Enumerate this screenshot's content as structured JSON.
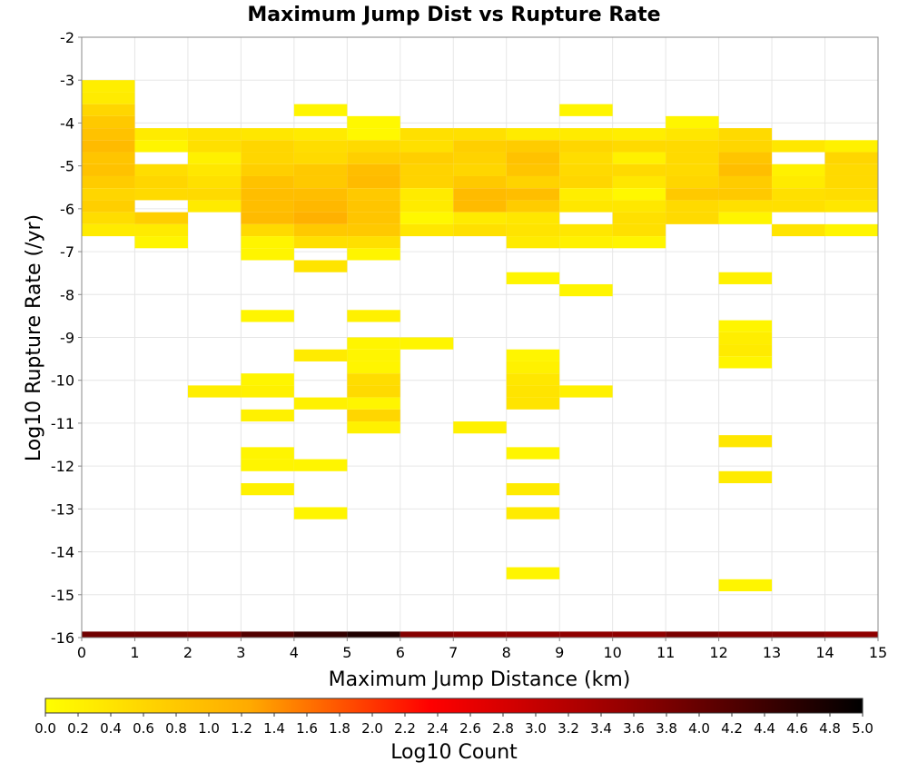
{
  "chart_data": {
    "type": "heatmap",
    "title": "Maximum Jump Dist vs Rupture Rate",
    "xlabel": "Maximum Jump Distance (km)",
    "ylabel": "Log10 Rupture Rate (/yr)",
    "xlim": [
      0,
      15
    ],
    "ylim": [
      -16,
      -2
    ],
    "x_ticks": [
      "0",
      "1",
      "2",
      "3",
      "4",
      "5",
      "6",
      "7",
      "8",
      "9",
      "10",
      "11",
      "12",
      "13",
      "14",
      "15"
    ],
    "y_ticks": [
      "-2",
      "-3",
      "-4",
      "-5",
      "-6",
      "-7",
      "-8",
      "-9",
      "-10",
      "-11",
      "-12",
      "-13",
      "-14",
      "-15",
      "-16"
    ],
    "grid": true,
    "x_bin_width": 1,
    "y_bin_height": 0.28,
    "colorbar": {
      "label": "Log10 Count",
      "range": [
        0,
        5
      ],
      "ticks": [
        "0.0",
        "0.2",
        "0.4",
        "0.6",
        "0.8",
        "1.0",
        "1.2",
        "1.4",
        "1.6",
        "1.8",
        "2.0",
        "2.2",
        "2.4",
        "2.6",
        "2.8",
        "3.0",
        "3.2",
        "3.4",
        "3.6",
        "3.8",
        "4.0",
        "4.2",
        "4.4",
        "4.6",
        "4.8",
        "5.0"
      ],
      "colors": [
        "#ffff00",
        "#ffaa00",
        "#ff0000",
        "#990000",
        "#000000"
      ]
    },
    "bottom_row": {
      "y": -16,
      "values": [
        3.9,
        3.9,
        3.8,
        4.2,
        4.5,
        4.7,
        3.7,
        3.6,
        3.6,
        3.6,
        3.6,
        3.8,
        3.7,
        3.7,
        3.6
      ]
    },
    "cells": [
      {
        "x": 0,
        "y": -3.14,
        "v": 0.25
      },
      {
        "x": 0,
        "y": -3.42,
        "v": 0.3
      },
      {
        "x": 0,
        "y": -3.7,
        "v": 0.6
      },
      {
        "x": 0,
        "y": -3.98,
        "v": 0.8
      },
      {
        "x": 0,
        "y": -4.26,
        "v": 0.9
      },
      {
        "x": 0,
        "y": -4.54,
        "v": 1.0
      },
      {
        "x": 0,
        "y": -4.82,
        "v": 0.85
      },
      {
        "x": 0,
        "y": -5.1,
        "v": 0.9
      },
      {
        "x": 0,
        "y": -5.38,
        "v": 0.75
      },
      {
        "x": 0,
        "y": -5.66,
        "v": 0.6
      },
      {
        "x": 0,
        "y": -5.94,
        "v": 0.7
      },
      {
        "x": 0,
        "y": -6.22,
        "v": 0.5
      },
      {
        "x": 0,
        "y": -6.5,
        "v": 0.3
      },
      {
        "x": 1,
        "y": -4.26,
        "v": 0.3
      },
      {
        "x": 1,
        "y": -4.54,
        "v": 0.15
      },
      {
        "x": 1,
        "y": -5.1,
        "v": 0.5
      },
      {
        "x": 1,
        "y": -5.38,
        "v": 0.6
      },
      {
        "x": 1,
        "y": -5.66,
        "v": 0.55
      },
      {
        "x": 1,
        "y": -6.22,
        "v": 0.7
      },
      {
        "x": 1,
        "y": -6.5,
        "v": 0.3
      },
      {
        "x": 1,
        "y": -6.78,
        "v": 0.15
      },
      {
        "x": 2,
        "y": -4.26,
        "v": 0.4
      },
      {
        "x": 2,
        "y": -4.54,
        "v": 0.45
      },
      {
        "x": 2,
        "y": -4.82,
        "v": 0.2
      },
      {
        "x": 2,
        "y": -5.1,
        "v": 0.35
      },
      {
        "x": 2,
        "y": -5.38,
        "v": 0.45
      },
      {
        "x": 2,
        "y": -5.66,
        "v": 0.55
      },
      {
        "x": 2,
        "y": -5.94,
        "v": 0.3
      },
      {
        "x": 2,
        "y": -10.26,
        "v": 0.25
      },
      {
        "x": 3,
        "y": -4.26,
        "v": 0.35
      },
      {
        "x": 3,
        "y": -4.54,
        "v": 0.6
      },
      {
        "x": 3,
        "y": -4.82,
        "v": 0.6
      },
      {
        "x": 3,
        "y": -5.1,
        "v": 0.7
      },
      {
        "x": 3,
        "y": -5.38,
        "v": 0.9
      },
      {
        "x": 3,
        "y": -5.66,
        "v": 0.95
      },
      {
        "x": 3,
        "y": -5.94,
        "v": 0.95
      },
      {
        "x": 3,
        "y": -6.22,
        "v": 1.0
      },
      {
        "x": 3,
        "y": -6.5,
        "v": 0.55
      },
      {
        "x": 3,
        "y": -6.78,
        "v": 0.15
      },
      {
        "x": 3,
        "y": -7.06,
        "v": 0.15
      },
      {
        "x": 3,
        "y": -8.5,
        "v": 0.15
      },
      {
        "x": 3,
        "y": -9.98,
        "v": 0.15
      },
      {
        "x": 3,
        "y": -10.26,
        "v": 0.2
      },
      {
        "x": 3,
        "y": -10.82,
        "v": 0.2
      },
      {
        "x": 3,
        "y": -11.7,
        "v": 0.15
      },
      {
        "x": 3,
        "y": -11.98,
        "v": 0.15
      },
      {
        "x": 3,
        "y": -12.54,
        "v": 0.2
      },
      {
        "x": 4,
        "y": -3.7,
        "v": 0.15
      },
      {
        "x": 4,
        "y": -4.26,
        "v": 0.3
      },
      {
        "x": 4,
        "y": -4.54,
        "v": 0.5
      },
      {
        "x": 4,
        "y": -4.82,
        "v": 0.55
      },
      {
        "x": 4,
        "y": -5.1,
        "v": 0.8
      },
      {
        "x": 4,
        "y": -5.38,
        "v": 0.8
      },
      {
        "x": 4,
        "y": -5.66,
        "v": 0.95
      },
      {
        "x": 4,
        "y": -5.94,
        "v": 1.05
      },
      {
        "x": 4,
        "y": -6.22,
        "v": 1.15
      },
      {
        "x": 4,
        "y": -6.5,
        "v": 0.8
      },
      {
        "x": 4,
        "y": -6.78,
        "v": 0.45
      },
      {
        "x": 4,
        "y": -7.34,
        "v": 0.4
      },
      {
        "x": 4,
        "y": -9.42,
        "v": 0.3
      },
      {
        "x": 4,
        "y": -10.54,
        "v": 0.2
      },
      {
        "x": 4,
        "y": -11.98,
        "v": 0.15
      },
      {
        "x": 4,
        "y": -13.1,
        "v": 0.15
      },
      {
        "x": 5,
        "y": -3.98,
        "v": 0.1
      },
      {
        "x": 5,
        "y": -4.26,
        "v": 0.1
      },
      {
        "x": 5,
        "y": -4.54,
        "v": 0.55
      },
      {
        "x": 5,
        "y": -4.82,
        "v": 0.7
      },
      {
        "x": 5,
        "y": -5.1,
        "v": 0.95
      },
      {
        "x": 5,
        "y": -5.38,
        "v": 1.0
      },
      {
        "x": 5,
        "y": -5.66,
        "v": 0.8
      },
      {
        "x": 5,
        "y": -5.94,
        "v": 0.85
      },
      {
        "x": 5,
        "y": -6.22,
        "v": 0.85
      },
      {
        "x": 5,
        "y": -6.5,
        "v": 0.8
      },
      {
        "x": 5,
        "y": -6.78,
        "v": 0.45
      },
      {
        "x": 5,
        "y": -7.06,
        "v": 0.15
      },
      {
        "x": 5,
        "y": -8.5,
        "v": 0.2
      },
      {
        "x": 5,
        "y": -9.14,
        "v": 0.15
      },
      {
        "x": 5,
        "y": -9.42,
        "v": 0.15
      },
      {
        "x": 5,
        "y": -9.7,
        "v": 0.15
      },
      {
        "x": 5,
        "y": -9.98,
        "v": 0.5
      },
      {
        "x": 5,
        "y": -10.26,
        "v": 0.55
      },
      {
        "x": 5,
        "y": -10.54,
        "v": 0.15
      },
      {
        "x": 5,
        "y": -10.82,
        "v": 0.6
      },
      {
        "x": 5,
        "y": -11.1,
        "v": 0.2
      },
      {
        "x": 6,
        "y": -4.26,
        "v": 0.45
      },
      {
        "x": 6,
        "y": -4.54,
        "v": 0.45
      },
      {
        "x": 6,
        "y": -4.82,
        "v": 0.7
      },
      {
        "x": 6,
        "y": -5.1,
        "v": 0.65
      },
      {
        "x": 6,
        "y": -5.38,
        "v": 0.65
      },
      {
        "x": 6,
        "y": -5.66,
        "v": 0.3
      },
      {
        "x": 6,
        "y": -5.94,
        "v": 0.3
      },
      {
        "x": 6,
        "y": -6.22,
        "v": 0.1
      },
      {
        "x": 6,
        "y": -6.5,
        "v": 0.35
      },
      {
        "x": 6,
        "y": -9.14,
        "v": 0.15
      },
      {
        "x": 7,
        "y": -4.26,
        "v": 0.45
      },
      {
        "x": 7,
        "y": -4.54,
        "v": 0.7
      },
      {
        "x": 7,
        "y": -4.82,
        "v": 0.65
      },
      {
        "x": 7,
        "y": -5.1,
        "v": 0.6
      },
      {
        "x": 7,
        "y": -5.38,
        "v": 0.8
      },
      {
        "x": 7,
        "y": -5.66,
        "v": 1.0
      },
      {
        "x": 7,
        "y": -5.94,
        "v": 1.0
      },
      {
        "x": 7,
        "y": -6.22,
        "v": 0.3
      },
      {
        "x": 7,
        "y": -6.5,
        "v": 0.45
      },
      {
        "x": 7,
        "y": -11.1,
        "v": 0.2
      },
      {
        "x": 8,
        "y": -4.26,
        "v": 0.3
      },
      {
        "x": 8,
        "y": -4.54,
        "v": 0.75
      },
      {
        "x": 8,
        "y": -4.82,
        "v": 0.9
      },
      {
        "x": 8,
        "y": -5.1,
        "v": 0.85
      },
      {
        "x": 8,
        "y": -5.38,
        "v": 0.65
      },
      {
        "x": 8,
        "y": -5.66,
        "v": 0.95
      },
      {
        "x": 8,
        "y": -5.94,
        "v": 0.75
      },
      {
        "x": 8,
        "y": -6.22,
        "v": 0.35
      },
      {
        "x": 8,
        "y": -6.5,
        "v": 0.4
      },
      {
        "x": 8,
        "y": -6.78,
        "v": 0.3
      },
      {
        "x": 8,
        "y": -7.62,
        "v": 0.15
      },
      {
        "x": 8,
        "y": -9.42,
        "v": 0.15
      },
      {
        "x": 8,
        "y": -9.7,
        "v": 0.2
      },
      {
        "x": 8,
        "y": -9.98,
        "v": 0.35
      },
      {
        "x": 8,
        "y": -10.26,
        "v": 0.4
      },
      {
        "x": 8,
        "y": -10.54,
        "v": 0.4
      },
      {
        "x": 8,
        "y": -11.7,
        "v": 0.15
      },
      {
        "x": 8,
        "y": -12.54,
        "v": 0.3
      },
      {
        "x": 8,
        "y": -13.1,
        "v": 0.3
      },
      {
        "x": 8,
        "y": -14.5,
        "v": 0.15
      },
      {
        "x": 9,
        "y": -3.7,
        "v": 0.15
      },
      {
        "x": 9,
        "y": -4.26,
        "v": 0.3
      },
      {
        "x": 9,
        "y": -4.54,
        "v": 0.6
      },
      {
        "x": 9,
        "y": -4.82,
        "v": 0.5
      },
      {
        "x": 9,
        "y": -5.1,
        "v": 0.55
      },
      {
        "x": 9,
        "y": -5.38,
        "v": 0.6
      },
      {
        "x": 9,
        "y": -5.66,
        "v": 0.25
      },
      {
        "x": 9,
        "y": -5.94,
        "v": 0.35
      },
      {
        "x": 9,
        "y": -6.5,
        "v": 0.35
      },
      {
        "x": 9,
        "y": -6.78,
        "v": 0.2
      },
      {
        "x": 9,
        "y": -7.9,
        "v": 0.15
      },
      {
        "x": 9,
        "y": -10.26,
        "v": 0.2
      },
      {
        "x": 10,
        "y": -4.26,
        "v": 0.25
      },
      {
        "x": 10,
        "y": -4.54,
        "v": 0.55
      },
      {
        "x": 10,
        "y": -4.82,
        "v": 0.2
      },
      {
        "x": 10,
        "y": -5.1,
        "v": 0.55
      },
      {
        "x": 10,
        "y": -5.38,
        "v": 0.35
      },
      {
        "x": 10,
        "y": -5.66,
        "v": 0.1
      },
      {
        "x": 10,
        "y": -5.94,
        "v": 0.35
      },
      {
        "x": 10,
        "y": -6.22,
        "v": 0.45
      },
      {
        "x": 10,
        "y": -6.5,
        "v": 0.45
      },
      {
        "x": 10,
        "y": -6.78,
        "v": 0.15
      },
      {
        "x": 11,
        "y": -3.98,
        "v": 0.15
      },
      {
        "x": 11,
        "y": -4.26,
        "v": 0.35
      },
      {
        "x": 11,
        "y": -4.54,
        "v": 0.55
      },
      {
        "x": 11,
        "y": -4.82,
        "v": 0.55
      },
      {
        "x": 11,
        "y": -5.1,
        "v": 0.55
      },
      {
        "x": 11,
        "y": -5.38,
        "v": 0.6
      },
      {
        "x": 11,
        "y": -5.66,
        "v": 0.8
      },
      {
        "x": 11,
        "y": -5.94,
        "v": 0.55
      },
      {
        "x": 11,
        "y": -6.22,
        "v": 0.55
      },
      {
        "x": 12,
        "y": -4.26,
        "v": 0.55
      },
      {
        "x": 12,
        "y": -4.54,
        "v": 0.6
      },
      {
        "x": 12,
        "y": -4.82,
        "v": 0.85
      },
      {
        "x": 12,
        "y": -5.1,
        "v": 0.95
      },
      {
        "x": 12,
        "y": -5.38,
        "v": 0.75
      },
      {
        "x": 12,
        "y": -5.66,
        "v": 0.8
      },
      {
        "x": 12,
        "y": -5.94,
        "v": 0.45
      },
      {
        "x": 12,
        "y": -6.22,
        "v": 0.15
      },
      {
        "x": 12,
        "y": -7.62,
        "v": 0.2
      },
      {
        "x": 12,
        "y": -8.74,
        "v": 0.15
      },
      {
        "x": 12,
        "y": -9.02,
        "v": 0.25
      },
      {
        "x": 12,
        "y": -9.3,
        "v": 0.3
      },
      {
        "x": 12,
        "y": -9.58,
        "v": 0.15
      },
      {
        "x": 12,
        "y": -11.42,
        "v": 0.35
      },
      {
        "x": 12,
        "y": -12.26,
        "v": 0.3
      },
      {
        "x": 12,
        "y": -14.78,
        "v": 0.15
      },
      {
        "x": 13,
        "y": -4.54,
        "v": 0.35
      },
      {
        "x": 13,
        "y": -5.1,
        "v": 0.2
      },
      {
        "x": 13,
        "y": -5.38,
        "v": 0.3
      },
      {
        "x": 13,
        "y": -5.66,
        "v": 0.45
      },
      {
        "x": 13,
        "y": -5.94,
        "v": 0.45
      },
      {
        "x": 13,
        "y": -6.5,
        "v": 0.4
      },
      {
        "x": 14,
        "y": -4.54,
        "v": 0.2
      },
      {
        "x": 14,
        "y": -4.82,
        "v": 0.6
      },
      {
        "x": 14,
        "y": -5.1,
        "v": 0.55
      },
      {
        "x": 14,
        "y": -5.38,
        "v": 0.55
      },
      {
        "x": 14,
        "y": -5.66,
        "v": 0.5
      },
      {
        "x": 14,
        "y": -5.94,
        "v": 0.35
      },
      {
        "x": 14,
        "y": -6.5,
        "v": 0.15
      }
    ]
  }
}
